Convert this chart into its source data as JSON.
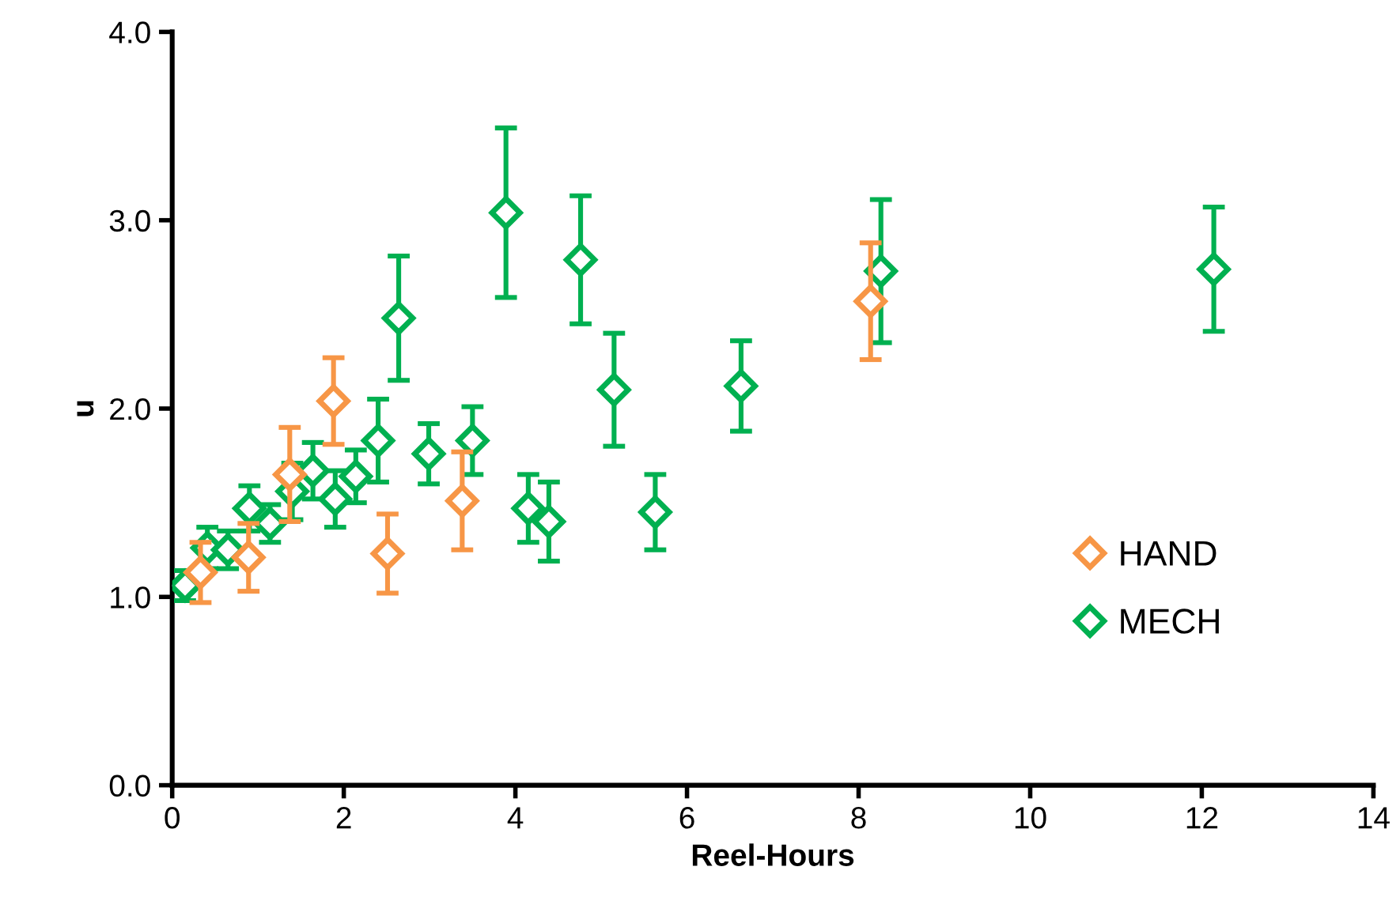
{
  "chart_data": {
    "type": "scatter",
    "xlabel": "Reel-Hours",
    "ylabel": "u",
    "xlim": [
      0,
      14
    ],
    "xticks": [
      0,
      2,
      4,
      6,
      8,
      10,
      12,
      14
    ],
    "ylim": [
      0,
      4
    ],
    "yticks": [
      {
        "value": 0,
        "label": "0.0"
      },
      {
        "value": 1,
        "label": "1.0"
      },
      {
        "value": 2,
        "label": "2.0"
      },
      {
        "value": 3,
        "label": "3.0"
      },
      {
        "value": 4,
        "label": "4.0"
      }
    ],
    "marker": "diamond",
    "grid": false,
    "legend": "bottom right",
    "series": [
      {
        "name": "HAND",
        "color": "#f79646",
        "x": [
          0.33,
          0.89,
          1.37,
          1.88,
          2.51,
          3.38,
          8.14
        ],
        "values": [
          1.13,
          1.21,
          1.65,
          2.04,
          1.23,
          1.51,
          2.57
        ],
        "errors": [
          0.16,
          0.18,
          0.25,
          0.23,
          0.21,
          0.26,
          0.31
        ]
      },
      {
        "name": "MECH",
        "color": "#00b050",
        "x": [
          0.15,
          0.41,
          0.65,
          0.9,
          1.14,
          1.4,
          1.64,
          1.9,
          2.14,
          2.4,
          2.64,
          2.99,
          3.5,
          3.89,
          4.15,
          4.39,
          4.76,
          5.15,
          5.63,
          6.63,
          8.26,
          12.14
        ],
        "values": [
          1.06,
          1.26,
          1.25,
          1.47,
          1.39,
          1.56,
          1.67,
          1.52,
          1.64,
          1.83,
          2.48,
          1.76,
          1.83,
          3.04,
          1.47,
          1.4,
          2.79,
          2.1,
          1.45,
          2.12,
          2.73,
          2.74
        ],
        "errors": [
          0.08,
          0.11,
          0.1,
          0.12,
          0.1,
          0.15,
          0.15,
          0.15,
          0.14,
          0.22,
          0.33,
          0.16,
          0.18,
          0.45,
          0.18,
          0.21,
          0.34,
          0.3,
          0.2,
          0.24,
          0.38,
          0.33
        ]
      }
    ]
  }
}
